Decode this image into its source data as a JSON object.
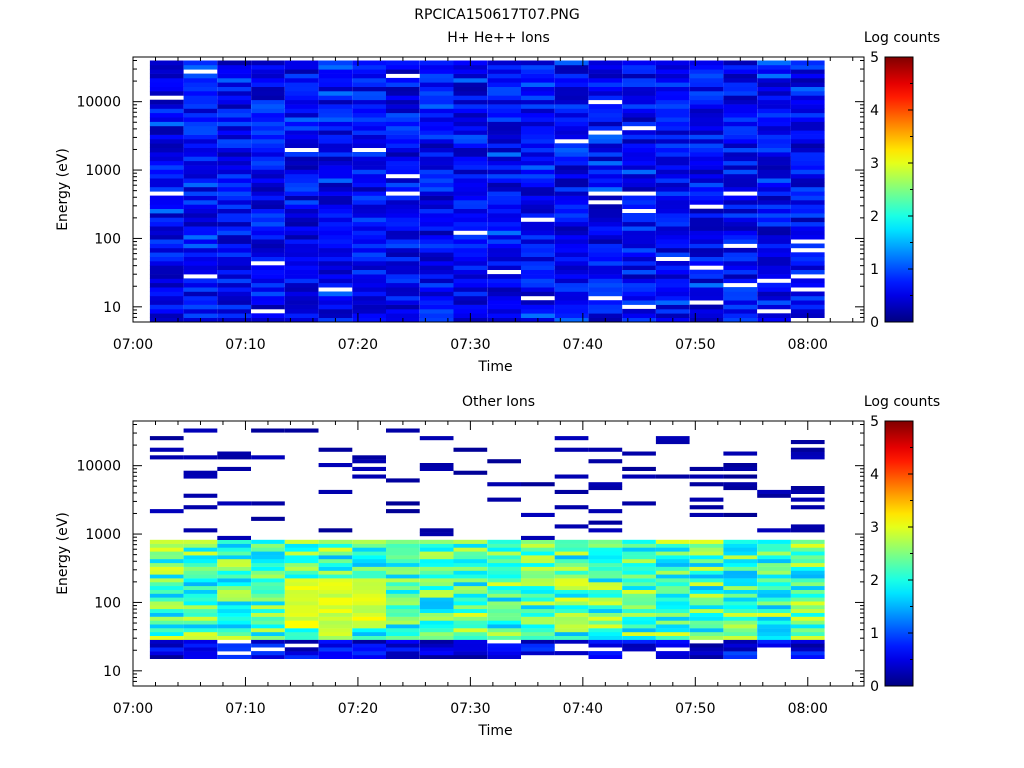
{
  "file_title": "RPCICA150617T07.PNG",
  "colorbar": {
    "colormap": "jet",
    "ticks": [
      "0",
      "1",
      "2",
      "3",
      "4",
      "5"
    ]
  },
  "chart_data": [
    {
      "type": "heatmap",
      "title": "H+ He++ Ions",
      "xlabel": "Time",
      "ylabel": "Energy (eV)",
      "colorbar_label": "Log counts",
      "x_ticks": [
        "07:00",
        "07:10",
        "07:20",
        "07:30",
        "07:40",
        "07:50",
        "08:00"
      ],
      "x_range": [
        "07:00",
        "08:05"
      ],
      "y_scale": "log",
      "y_ticks": [
        "10",
        "100",
        "1000",
        "10000"
      ],
      "y_range": [
        6,
        45000
      ],
      "color_range": [
        0,
        5
      ],
      "time_bins": [
        "07:03",
        "07:06",
        "07:09",
        "07:12",
        "07:15",
        "07:18",
        "07:21",
        "07:24",
        "07:27",
        "07:30",
        "07:33",
        "07:36",
        "07:39",
        "07:42",
        "07:45",
        "07:48",
        "07:51",
        "07:54",
        "07:57",
        "08:00"
      ],
      "energy_range_eV": [
        6,
        40000
      ],
      "typical_log_counts": [
        0.2,
        1.0
      ],
      "peak_log_counts": 1.2
    },
    {
      "type": "heatmap",
      "title": "Other Ions",
      "xlabel": "Time",
      "ylabel": "Energy (eV)",
      "colorbar_label": "Log counts",
      "x_ticks": [
        "07:00",
        "07:10",
        "07:20",
        "07:30",
        "07:40",
        "07:50",
        "08:00"
      ],
      "x_range": [
        "07:00",
        "08:05"
      ],
      "y_scale": "log",
      "y_ticks": [
        "10",
        "100",
        "1000",
        "10000"
      ],
      "y_range": [
        6,
        45000
      ],
      "color_range": [
        0,
        5
      ],
      "time_bins": [
        "07:03",
        "07:06",
        "07:09",
        "07:12",
        "07:15",
        "07:18",
        "07:21",
        "07:24",
        "07:27",
        "07:30",
        "07:33",
        "07:36",
        "07:39",
        "07:42",
        "07:45",
        "07:48",
        "07:51",
        "07:54",
        "07:57",
        "08:00"
      ],
      "energy_range_eV": [
        15,
        35000
      ],
      "core_band_eV": [
        30,
        800
      ],
      "core_log_counts": [
        1.5,
        3.0
      ],
      "peak": {
        "time": "07:18",
        "energy_eV": 100,
        "log_counts": 3.2
      },
      "high_energy_log_counts": 0.2
    }
  ]
}
